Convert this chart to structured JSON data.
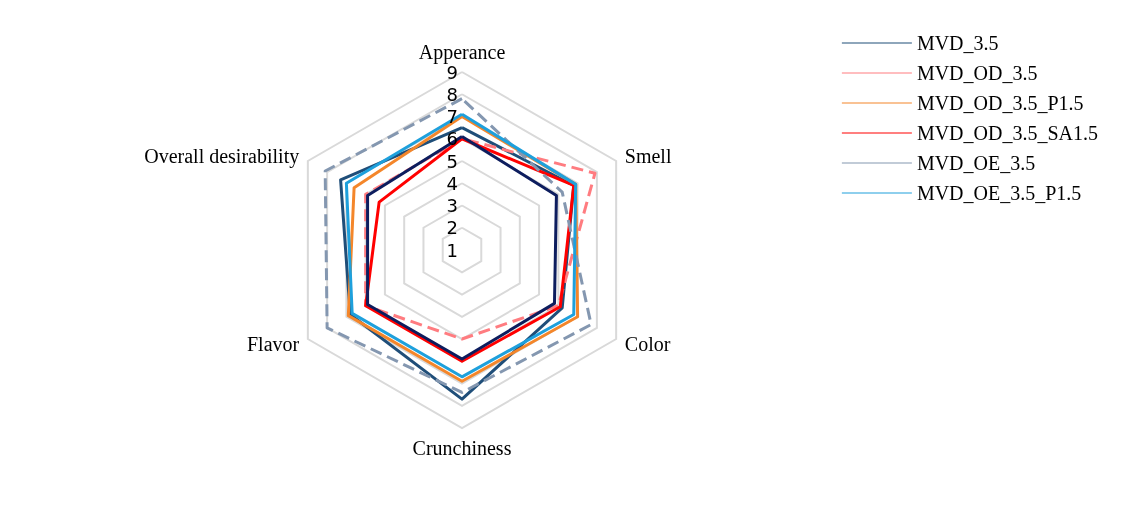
{
  "chart_data": {
    "type": "radar",
    "categories": [
      "Apperance",
      "Smell",
      "Color",
      "Crunchiness",
      "Flavor",
      "Overall desirability"
    ],
    "ylim": [
      1,
      9
    ],
    "yticks": [
      1,
      2,
      3,
      4,
      5,
      6,
      7,
      8,
      9
    ],
    "grid": true,
    "legend": "top right",
    "marker": "none",
    "series": [
      {
        "name": "MVD_3.5",
        "color": "#1f4e79",
        "line_style": "solid",
        "values": [
          6.5,
          6.8,
          6.2,
          7.7,
          6.8,
          7.3
        ]
      },
      {
        "name": "MVD_OD_3.5",
        "color": "#ff7c80",
        "line_style": "dashed",
        "values": [
          6.0,
          7.9,
          6.0,
          5.0,
          6.0,
          6.0
        ]
      },
      {
        "name": "MVD_OD_3.5_P1.5",
        "color": "#f4862a",
        "line_style": "solid",
        "values": [
          7.0,
          6.9,
          7.0,
          6.9,
          6.9,
          6.6
        ]
      },
      {
        "name": "MVD_OD_3.5_SA1.5",
        "color": "#ff0000",
        "line_style": "solid",
        "values": [
          6.0,
          6.8,
          6.1,
          6.0,
          6.0,
          5.3
        ]
      },
      {
        "name": "MVD_OE_3.5",
        "color": "#8497b0",
        "line_style": "dashed",
        "values": [
          7.8,
          6.2,
          7.7,
          7.4,
          8.0,
          8.1
        ]
      },
      {
        "name": "MVD_OE_3.5_P1.5",
        "color": "#1ea0dc",
        "line_style": "solid",
        "values": [
          7.1,
          6.9,
          6.8,
          6.7,
          6.7,
          7.0
        ]
      },
      {
        "color": "#0d1d5e",
        "line_style": "solid",
        "values": [
          6.1,
          5.9,
          5.8,
          5.9,
          5.9,
          5.9
        ]
      }
    ]
  }
}
